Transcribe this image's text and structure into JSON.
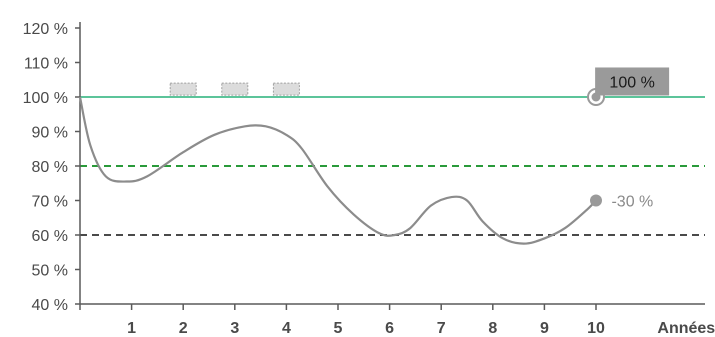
{
  "chart_data": {
    "type": "line",
    "title": "",
    "xlabel": "Années",
    "ylabel": "",
    "xlim": [
      0,
      12
    ],
    "ylim": [
      40,
      120
    ],
    "x_ticks": [
      1,
      2,
      3,
      4,
      5,
      6,
      7,
      8,
      9,
      10
    ],
    "x_tick_labels": [
      "1",
      "2",
      "3",
      "4",
      "5",
      "6",
      "7",
      "8",
      "9",
      "10"
    ],
    "y_ticks": [
      40,
      50,
      60,
      70,
      80,
      90,
      100,
      110,
      120
    ],
    "y_tick_labels": [
      "40 %",
      "50 %",
      "60 %",
      "70 %",
      "80 %",
      "90 %",
      "100 %",
      "110 %",
      "120 %"
    ],
    "y_tick_label_colors": {
      "100": "#5cc49a",
      "80": "#2a9a3a"
    },
    "grid": false,
    "series": [
      {
        "color": "#8c8c8c",
        "x": [
          0,
          0.2,
          0.5,
          0.9,
          1.3,
          2.0,
          2.6,
          3.2,
          3.6,
          4.0,
          4.3,
          4.8,
          5.3,
          5.8,
          6.1,
          6.4,
          6.8,
          7.2,
          7.5,
          7.8,
          8.2,
          8.6,
          9.0,
          9.4,
          9.8,
          10.0
        ],
        "values": [
          100,
          86,
          77,
          75.5,
          77,
          84,
          89,
          91.5,
          91.5,
          89,
          85,
          74,
          66,
          60.5,
          60,
          62,
          68.5,
          71,
          70,
          64,
          59,
          57.5,
          59,
          62,
          67,
          70
        ]
      }
    ],
    "reference_lines": [
      {
        "value": 100,
        "style": "solid",
        "color": "#5cc49a"
      },
      {
        "value": 80,
        "style": "dashed",
        "color": "#2a9a3a"
      },
      {
        "value": 60,
        "style": "dashed",
        "color": "#4a4a4a"
      }
    ],
    "markers": [
      {
        "x": 10,
        "y": 100,
        "kind": "ring",
        "color": "#9a9a9a"
      },
      {
        "x": 10,
        "y": 70,
        "kind": "dot",
        "color": "#9a9a9a"
      }
    ],
    "annotations": [
      {
        "kind": "callout-box",
        "text": "100 %",
        "x": 10.7,
        "y": 104.5,
        "background": "#9a9a9a"
      },
      {
        "kind": "end-label",
        "text": "-30 %",
        "x": 10.3,
        "y": 70
      }
    ],
    "placeholder_boxes": [
      {
        "x": 2.0,
        "y": 102
      },
      {
        "x": 3.0,
        "y": 102
      },
      {
        "x": 4.0,
        "y": 102
      }
    ],
    "colors": {
      "axis": "#5a5a5a",
      "line": "#8c8c8c",
      "placeholder_fill": "#dcdcdc",
      "placeholder_stroke": "#a0a0a0"
    }
  }
}
